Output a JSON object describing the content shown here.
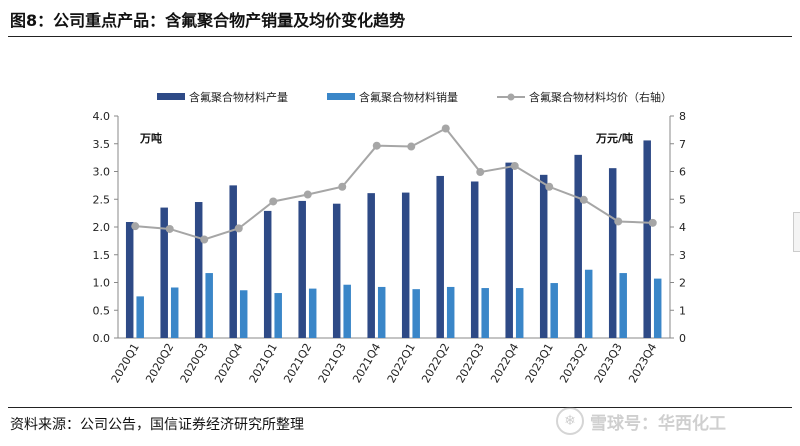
{
  "figure": {
    "title": "图8：公司重点产品：含氟聚合物产销量及均价变化趋势",
    "source": "资料来源：公司公告，国信证券经济研究所整理",
    "watermark": "雪球号：华西化工"
  },
  "chart_data": {
    "type": "bar",
    "categories": [
      "2020Q1",
      "2020Q2",
      "2020Q3",
      "2020Q4",
      "2021Q1",
      "2021Q2",
      "2021Q3",
      "2021Q4",
      "2022Q1",
      "2022Q2",
      "2022Q3",
      "2022Q4",
      "2023Q1",
      "2023Q2",
      "2023Q3",
      "2023Q4"
    ],
    "series": [
      {
        "name": "含氟聚合物材料产量",
        "type": "bar",
        "axis": "left",
        "color": "#2e4a86",
        "values": [
          2.09,
          2.35,
          2.45,
          2.75,
          2.29,
          2.47,
          2.42,
          2.61,
          2.62,
          2.92,
          2.82,
          3.16,
          2.94,
          3.3,
          3.06,
          3.56
        ]
      },
      {
        "name": "含氟聚合物材料销量",
        "type": "bar",
        "axis": "left",
        "color": "#3a86c8",
        "values": [
          0.75,
          0.91,
          1.17,
          0.86,
          0.81,
          0.89,
          0.96,
          0.92,
          0.88,
          0.92,
          0.9,
          0.9,
          0.99,
          1.23,
          1.17,
          1.07
        ]
      },
      {
        "name": "含氟聚合物材料均价（右轴）",
        "type": "line",
        "axis": "right",
        "color": "#a6a6a6",
        "values": [
          4.03,
          3.93,
          3.55,
          3.95,
          4.92,
          5.17,
          5.45,
          6.93,
          6.9,
          7.55,
          5.98,
          6.2,
          5.45,
          4.98,
          4.2,
          4.15
        ]
      }
    ],
    "y_left": {
      "unit": "万吨",
      "min": 0,
      "max": 4.0,
      "step": 0.5,
      "ticks": [
        "0.0",
        "0.5",
        "1.0",
        "1.5",
        "2.0",
        "2.5",
        "3.0",
        "3.5",
        "4.0"
      ]
    },
    "y_right": {
      "unit": "万元/吨",
      "min": 0,
      "max": 8,
      "step": 1,
      "ticks": [
        "0",
        "1",
        "2",
        "3",
        "4",
        "5",
        "6",
        "7",
        "8"
      ]
    },
    "legend_position": "top",
    "grid": false
  }
}
